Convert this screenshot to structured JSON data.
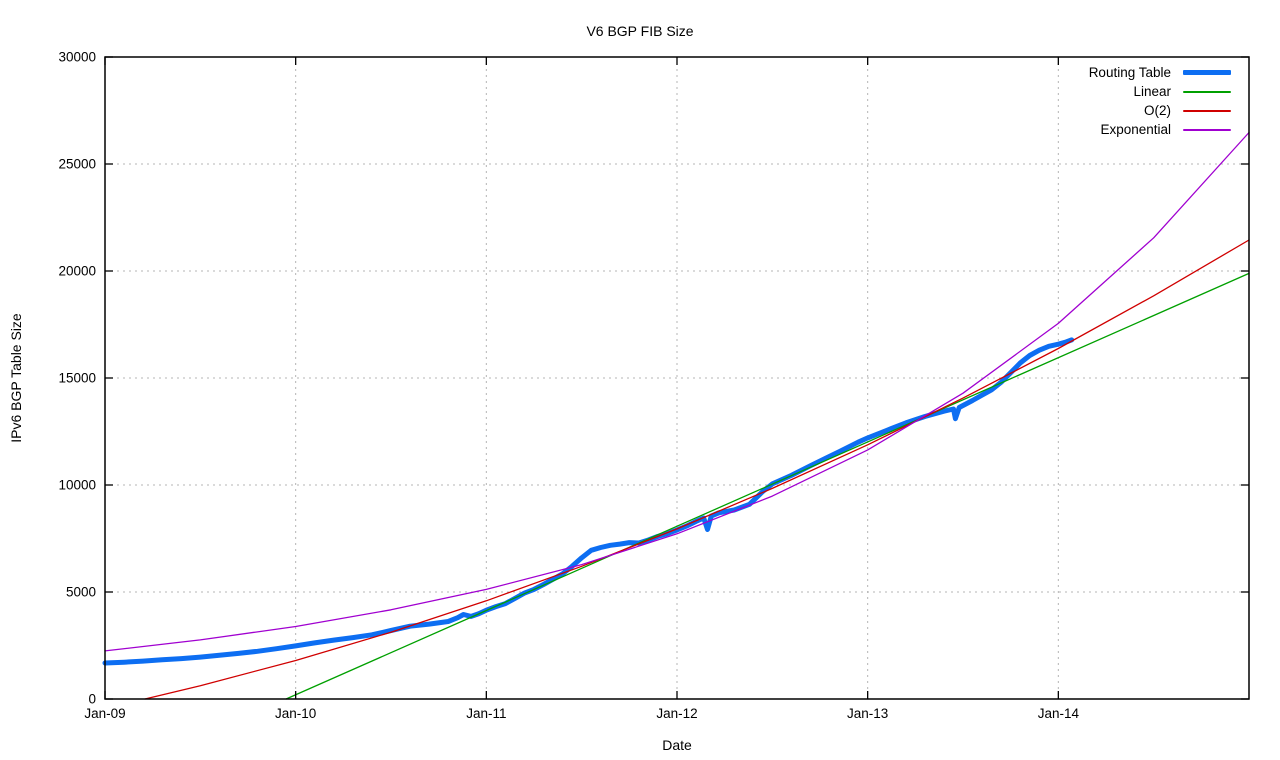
{
  "chart_data": {
    "type": "line",
    "title": "V6 BGP FIB Size",
    "xlabel": "Date",
    "ylabel": "IPv6 BGP Table Size",
    "xlim": [
      2009.0,
      2015.0
    ],
    "ylim": [
      0,
      30000
    ],
    "grid": "dotted",
    "legend_position": "top-right-inside",
    "x_ticks": [
      {
        "value": 2009.0,
        "label": "Jan-09"
      },
      {
        "value": 2010.0,
        "label": "Jan-10"
      },
      {
        "value": 2011.0,
        "label": "Jan-11"
      },
      {
        "value": 2012.0,
        "label": "Jan-12"
      },
      {
        "value": 2013.0,
        "label": "Jan-13"
      },
      {
        "value": 2014.0,
        "label": "Jan-14"
      }
    ],
    "y_ticks": [
      {
        "value": 0,
        "label": "0"
      },
      {
        "value": 5000,
        "label": "5000"
      },
      {
        "value": 10000,
        "label": "10000"
      },
      {
        "value": 15000,
        "label": "15000"
      },
      {
        "value": 20000,
        "label": "20000"
      },
      {
        "value": 25000,
        "label": "25000"
      },
      {
        "value": 30000,
        "label": "30000"
      }
    ],
    "colors": {
      "axis": "#000000",
      "grid": "#b5b5b5",
      "background": "#ffffff"
    },
    "series": [
      {
        "name": "Routing Table",
        "color": "#0d6ef2",
        "line_width": 5,
        "points": [
          [
            2009.0,
            1680
          ],
          [
            2009.1,
            1720
          ],
          [
            2009.2,
            1770
          ],
          [
            2009.3,
            1830
          ],
          [
            2009.4,
            1890
          ],
          [
            2009.5,
            1960
          ],
          [
            2009.6,
            2040
          ],
          [
            2009.7,
            2130
          ],
          [
            2009.8,
            2230
          ],
          [
            2009.9,
            2350
          ],
          [
            2010.0,
            2480
          ],
          [
            2010.1,
            2620
          ],
          [
            2010.2,
            2750
          ],
          [
            2010.3,
            2870
          ],
          [
            2010.4,
            3000
          ],
          [
            2010.5,
            3200
          ],
          [
            2010.6,
            3400
          ],
          [
            2010.7,
            3500
          ],
          [
            2010.8,
            3620
          ],
          [
            2010.85,
            3800
          ],
          [
            2010.88,
            3950
          ],
          [
            2010.92,
            3860
          ],
          [
            2010.96,
            3980
          ],
          [
            2011.0,
            4150
          ],
          [
            2011.05,
            4320
          ],
          [
            2011.1,
            4460
          ],
          [
            2011.15,
            4700
          ],
          [
            2011.2,
            4950
          ],
          [
            2011.25,
            5120
          ],
          [
            2011.3,
            5350
          ],
          [
            2011.35,
            5600
          ],
          [
            2011.4,
            5850
          ],
          [
            2011.45,
            6200
          ],
          [
            2011.5,
            6600
          ],
          [
            2011.55,
            6950
          ],
          [
            2011.6,
            7080
          ],
          [
            2011.65,
            7180
          ],
          [
            2011.7,
            7240
          ],
          [
            2011.75,
            7310
          ],
          [
            2011.8,
            7290
          ],
          [
            2011.85,
            7430
          ],
          [
            2011.9,
            7600
          ],
          [
            2011.95,
            7730
          ],
          [
            2012.0,
            7900
          ],
          [
            2012.05,
            8080
          ],
          [
            2012.1,
            8300
          ],
          [
            2012.14,
            8460
          ],
          [
            2012.16,
            7920
          ],
          [
            2012.18,
            8550
          ],
          [
            2012.22,
            8700
          ],
          [
            2012.3,
            8830
          ],
          [
            2012.38,
            9100
          ],
          [
            2012.45,
            9700
          ],
          [
            2012.5,
            10050
          ],
          [
            2012.6,
            10450
          ],
          [
            2012.7,
            10900
          ],
          [
            2012.78,
            11250
          ],
          [
            2012.85,
            11550
          ],
          [
            2012.95,
            12000
          ],
          [
            2013.0,
            12200
          ],
          [
            2013.1,
            12550
          ],
          [
            2013.2,
            12900
          ],
          [
            2013.3,
            13200
          ],
          [
            2013.4,
            13450
          ],
          [
            2013.45,
            13550
          ],
          [
            2013.46,
            13100
          ],
          [
            2013.48,
            13620
          ],
          [
            2013.55,
            13950
          ],
          [
            2013.6,
            14200
          ],
          [
            2013.65,
            14450
          ],
          [
            2013.7,
            14800
          ],
          [
            2013.75,
            15250
          ],
          [
            2013.8,
            15700
          ],
          [
            2013.85,
            16050
          ],
          [
            2013.9,
            16300
          ],
          [
            2013.95,
            16480
          ],
          [
            2014.0,
            16580
          ],
          [
            2014.04,
            16680
          ],
          [
            2014.07,
            16780
          ]
        ]
      },
      {
        "name": "Linear",
        "color": "#00a000",
        "line_width": 1.3,
        "points": [
          [
            2009.95,
            0
          ],
          [
            2015.0,
            19890
          ]
        ]
      },
      {
        "name": "O(2)",
        "color": "#d00000",
        "line_width": 1.3,
        "points": [
          [
            2009.21,
            0
          ],
          [
            2009.5,
            620
          ],
          [
            2010.0,
            1800
          ],
          [
            2010.5,
            3120
          ],
          [
            2011.0,
            4590
          ],
          [
            2011.5,
            6200
          ],
          [
            2012.0,
            7950
          ],
          [
            2012.5,
            9840
          ],
          [
            2013.0,
            11880
          ],
          [
            2013.5,
            14060
          ],
          [
            2014.0,
            16380
          ],
          [
            2014.5,
            18840
          ],
          [
            2015.0,
            21450
          ]
        ]
      },
      {
        "name": "Exponential",
        "color": "#a000d0",
        "line_width": 1.3,
        "points": [
          [
            2009.0,
            2250
          ],
          [
            2009.5,
            2760
          ],
          [
            2010.0,
            3390
          ],
          [
            2010.5,
            4170
          ],
          [
            2011.0,
            5120
          ],
          [
            2011.5,
            6280
          ],
          [
            2012.0,
            7720
          ],
          [
            2012.5,
            9480
          ],
          [
            2013.0,
            11640
          ],
          [
            2013.5,
            14290
          ],
          [
            2014.0,
            17550
          ],
          [
            2014.5,
            21550
          ],
          [
            2015.0,
            26470
          ]
        ]
      }
    ]
  }
}
